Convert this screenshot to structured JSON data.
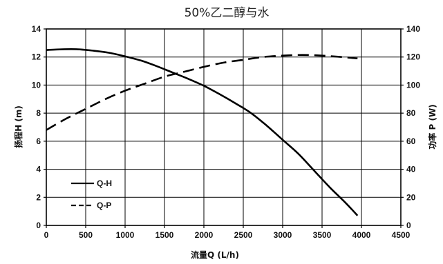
{
  "chart_data": {
    "type": "line",
    "title": "50%乙二醇与水",
    "xlabel": "流量Q (L/h)",
    "ylabel_left": "扬程H (m)",
    "ylabel_right": "功率 P (W)",
    "xlim": [
      0,
      4500
    ],
    "ylim_left": [
      0,
      14
    ],
    "ylim_right": [
      0,
      140
    ],
    "xticks": [
      "0",
      "500",
      "1000",
      "1500",
      "2000",
      "2500",
      "3000",
      "3500",
      "4000",
      "4500"
    ],
    "yticks_left": [
      "0",
      "2",
      "4",
      "6",
      "8",
      "10",
      "12",
      "14"
    ],
    "yticks_right": [
      "0",
      "20",
      "40",
      "60",
      "80",
      "100",
      "120",
      "140"
    ],
    "grid": true,
    "legend_position": "bottom-left",
    "series": [
      {
        "name": "Q-H",
        "axis": "left",
        "style": "solid",
        "x": [
          0,
          200,
          400,
          600,
          800,
          1000,
          1200,
          1400,
          1600,
          1800,
          2000,
          2200,
          2400,
          2600,
          2800,
          3000,
          3200,
          3400,
          3600,
          3800,
          3950
        ],
        "y": [
          12.5,
          12.55,
          12.55,
          12.45,
          12.3,
          12.05,
          11.75,
          11.35,
          10.9,
          10.45,
          9.95,
          9.35,
          8.7,
          8.0,
          7.1,
          6.1,
          5.1,
          3.9,
          2.7,
          1.6,
          0.7
        ]
      },
      {
        "name": "Q-P",
        "axis": "right",
        "style": "dashed",
        "x": [
          0,
          250,
          500,
          750,
          1000,
          1250,
          1500,
          1750,
          2000,
          2250,
          2500,
          2750,
          3000,
          3250,
          3500,
          3750,
          3950
        ],
        "y": [
          68,
          76,
          83,
          90,
          96,
          101,
          106,
          109.5,
          113,
          116,
          118,
          120,
          121,
          121.5,
          121,
          120,
          119
        ]
      }
    ]
  }
}
